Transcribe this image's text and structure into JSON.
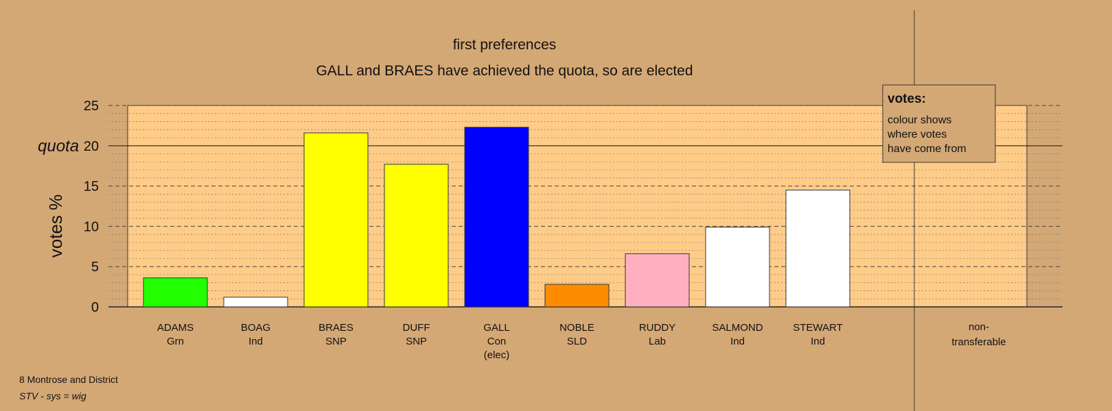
{
  "chart_data": {
    "type": "bar",
    "title": "first preferences",
    "subtitle": "GALL and BRAES have achieved the quota, so are elected",
    "ylabel": "votes %",
    "ylim": [
      0,
      25
    ],
    "yticks": [
      "0",
      "5",
      "10",
      "15",
      "20",
      "25"
    ],
    "quota": {
      "label": "quota",
      "value": 20
    },
    "grid": true,
    "bars": [
      {
        "name": "ADAMS",
        "party": "Grn",
        "note": "",
        "value": 3.6,
        "color": "#22ff00"
      },
      {
        "name": "BOAG",
        "party": "Ind",
        "note": "",
        "value": 1.2,
        "color": "#ffffff"
      },
      {
        "name": "BRAES",
        "party": "SNP",
        "note": "",
        "value": 21.6,
        "color": "#ffff00"
      },
      {
        "name": "DUFF",
        "party": "SNP",
        "note": "",
        "value": 17.7,
        "color": "#ffff00"
      },
      {
        "name": "GALL",
        "party": "Con",
        "note": "(elec)",
        "value": 22.3,
        "color": "#0000ff"
      },
      {
        "name": "NOBLE",
        "party": "SLD",
        "note": "",
        "value": 2.8,
        "color": "#ff8c00"
      },
      {
        "name": "RUDDY",
        "party": "Lab",
        "note": "",
        "value": 6.6,
        "color": "#ffb0c0"
      },
      {
        "name": "SALMOND",
        "party": "Ind",
        "note": "",
        "value": 9.9,
        "color": "#ffffff"
      },
      {
        "name": "STEWART",
        "party": "Ind",
        "note": "",
        "value": 14.5,
        "color": "#ffffff"
      }
    ],
    "nontransferable": {
      "line1": "non-",
      "line2": "transferable",
      "value": 0
    },
    "legend": {
      "title": "votes:",
      "lines": [
        "colour shows",
        "where votes",
        "have come from"
      ],
      "placement": "top-right"
    }
  },
  "footer": {
    "line1": "8 Montrose and District",
    "line2": "STV - sys = wig"
  },
  "colors": {
    "background": "#d4a875",
    "plot_background": "#ffcc88"
  }
}
